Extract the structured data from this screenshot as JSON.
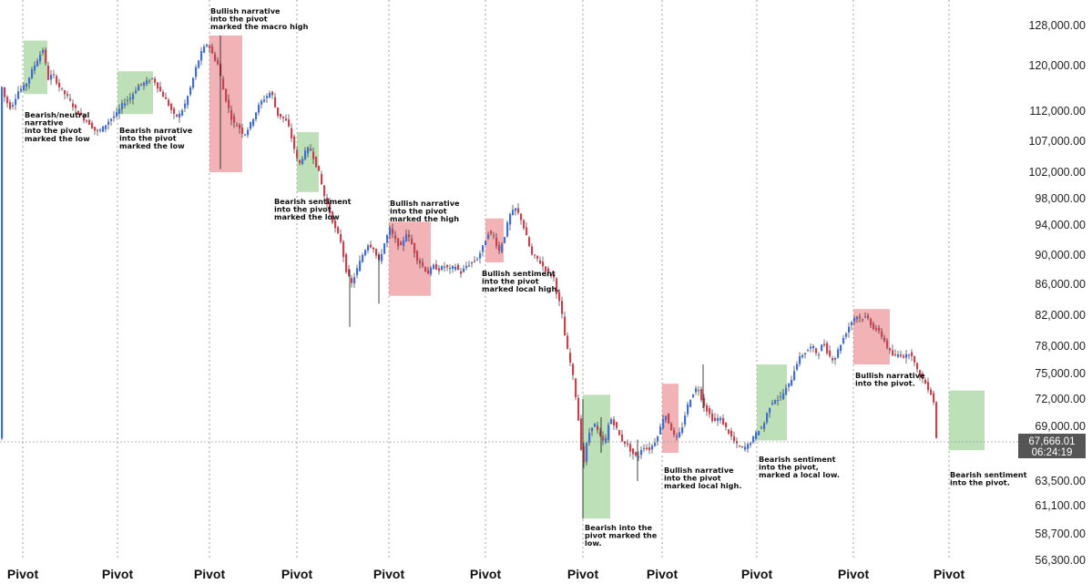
{
  "chart_data": {
    "type": "candlestick",
    "title": "",
    "grid": false,
    "colors": {
      "up": "#3d6fd6",
      "down": "#c9414f",
      "bullish_zone": "#a8d5a0",
      "bearish_zone": "#ec9a9e",
      "pivot_line": "#8a8a8a"
    },
    "y_axis": {
      "ticks": [
        "128,000.00",
        "120,000.00",
        "112,000.00",
        "107,000.00",
        "102,000.00",
        "98,000.00",
        "94,000.00",
        "90,000.00",
        "86,000.00",
        "82,000.00",
        "78,000.00",
        "75,000.00",
        "72,000.00",
        "69,000.00",
        "66,000.00",
        "63,500.00",
        "61,100.00",
        "58,700.00",
        "56,300.00"
      ]
    },
    "current_price": {
      "value": "67,666.01",
      "countdown": "06:24:19"
    },
    "x_labels": [
      "Pivot",
      "Pivot",
      "Pivot",
      "Pivot",
      "Pivot",
      "Pivot",
      "Pivot",
      "Pivot",
      "Pivot",
      "Pivot",
      "Pivot"
    ],
    "zones": [
      {
        "kind": "bearish-sentiment",
        "top": 125000,
        "bottom": 115000
      },
      {
        "kind": "bearish-sentiment",
        "top": 119000,
        "bottom": 111500
      },
      {
        "kind": "bullish-sentiment",
        "top": 126000,
        "bottom": 102000
      },
      {
        "kind": "bearish-sentiment",
        "top": 108500,
        "bottom": 99000
      },
      {
        "kind": "bullish-sentiment",
        "top": 94500,
        "bottom": 84500
      },
      {
        "kind": "bullish-sentiment",
        "top": 95000,
        "bottom": 89000
      },
      {
        "kind": "bearish-sentiment",
        "top": 72500,
        "bottom": 60000
      },
      {
        "kind": "bullish-sentiment",
        "top": 73800,
        "bottom": 66000
      },
      {
        "kind": "bearish-sentiment",
        "top": 76000,
        "bottom": 67400
      },
      {
        "kind": "bullish-sentiment",
        "top": 82800,
        "bottom": 76000
      },
      {
        "kind": "bearish-sentiment",
        "top": 73000,
        "bottom": 66300
      }
    ],
    "annotations": [
      {
        "lines": [
          "Bearish/neutral",
          "narrative",
          "into the pivot",
          "marked the low"
        ]
      },
      {
        "lines": [
          "Bearish narrative",
          "into the pivot",
          "marked the low"
        ]
      },
      {
        "lines": [
          "Bullish narrative",
          "into the pivot",
          "marked the macro high"
        ]
      },
      {
        "lines": [
          "Bearish sentiment",
          "into the pivot",
          "marked the low"
        ]
      },
      {
        "lines": [
          "Bullish narrative",
          "into the pivot",
          "marked the high"
        ]
      },
      {
        "lines": [
          "Bullish sentiment",
          "into the pivot",
          "marked local high."
        ]
      },
      {
        "lines": [
          "Bearish into the",
          "pivot marked the",
          "low."
        ]
      },
      {
        "lines": [
          "Bullish narrative",
          "into the pivot",
          "marked local high."
        ]
      },
      {
        "lines": [
          "Bearish sentiment",
          "into the pivot,",
          "marked a local low."
        ]
      },
      {
        "lines": [
          "Bullish narrative",
          "into the pivot."
        ]
      },
      {
        "lines": [
          "Bearish sentiment",
          "into the pivot."
        ]
      }
    ],
    "price_path": [
      [
        0,
        117500
      ],
      [
        6,
        114000
      ],
      [
        12,
        112500
      ],
      [
        20,
        115500
      ],
      [
        28,
        116500
      ],
      [
        35,
        119000
      ],
      [
        42,
        121500
      ],
      [
        48,
        123500
      ],
      [
        52,
        117500
      ],
      [
        58,
        118500
      ],
      [
        66,
        116000
      ],
      [
        74,
        114500
      ],
      [
        82,
        112500
      ],
      [
        90,
        111000
      ],
      [
        98,
        110000
      ],
      [
        106,
        108500
      ],
      [
        112,
        109000
      ],
      [
        120,
        110500
      ],
      [
        128,
        111500
      ],
      [
        136,
        113500
      ],
      [
        144,
        114500
      ],
      [
        152,
        116500
      ],
      [
        160,
        117000
      ],
      [
        168,
        117800
      ],
      [
        176,
        115500
      ],
      [
        184,
        113500
      ],
      [
        192,
        111000
      ],
      [
        198,
        111500
      ],
      [
        204,
        113500
      ],
      [
        210,
        116500
      ],
      [
        216,
        120000
      ],
      [
        222,
        123000
      ],
      [
        228,
        124500
      ],
      [
        234,
        122000
      ],
      [
        240,
        120000
      ],
      [
        244,
        116500
      ],
      [
        250,
        113000
      ],
      [
        256,
        110000
      ],
      [
        262,
        109500
      ],
      [
        268,
        108000
      ],
      [
        274,
        109500
      ],
      [
        280,
        111500
      ],
      [
        286,
        113500
      ],
      [
        292,
        114500
      ],
      [
        298,
        115500
      ],
      [
        304,
        111500
      ],
      [
        310,
        111000
      ],
      [
        316,
        110000
      ],
      [
        322,
        106500
      ],
      [
        328,
        103000
      ],
      [
        334,
        105000
      ],
      [
        340,
        106000
      ],
      [
        344,
        104500
      ],
      [
        350,
        102000
      ],
      [
        356,
        98500
      ],
      [
        362,
        96000
      ],
      [
        368,
        93500
      ],
      [
        374,
        92000
      ],
      [
        380,
        88000
      ],
      [
        386,
        86000
      ],
      [
        392,
        88000
      ],
      [
        398,
        90000
      ],
      [
        404,
        91500
      ],
      [
        410,
        91000
      ],
      [
        416,
        89000
      ],
      [
        422,
        91500
      ],
      [
        428,
        93500
      ],
      [
        434,
        92000
      ],
      [
        440,
        91000
      ],
      [
        446,
        93000
      ],
      [
        452,
        91500
      ],
      [
        458,
        89500
      ],
      [
        464,
        88500
      ],
      [
        470,
        87500
      ],
      [
        476,
        88500
      ],
      [
        482,
        88000
      ],
      [
        488,
        88500
      ],
      [
        494,
        88000
      ],
      [
        500,
        88500
      ],
      [
        506,
        87500
      ],
      [
        512,
        88500
      ],
      [
        518,
        89000
      ],
      [
        524,
        89500
      ],
      [
        530,
        91000
      ],
      [
        536,
        93000
      ],
      [
        542,
        92500
      ],
      [
        548,
        90500
      ],
      [
        554,
        92500
      ],
      [
        560,
        95500
      ],
      [
        566,
        96500
      ],
      [
        572,
        95000
      ],
      [
        578,
        92500
      ],
      [
        584,
        90000
      ],
      [
        590,
        89500
      ],
      [
        596,
        88500
      ],
      [
        602,
        87500
      ],
      [
        608,
        87000
      ],
      [
        612,
        84500
      ],
      [
        616,
        83000
      ],
      [
        620,
        79500
      ],
      [
        624,
        77000
      ],
      [
        628,
        75500
      ],
      [
        632,
        72500
      ],
      [
        636,
        69000
      ],
      [
        640,
        64500
      ],
      [
        646,
        68000
      ],
      [
        652,
        69500
      ],
      [
        658,
        68000
      ],
      [
        664,
        67000
      ],
      [
        670,
        70000
      ],
      [
        676,
        69000
      ],
      [
        682,
        67500
      ],
      [
        688,
        67000
      ],
      [
        694,
        66000
      ],
      [
        700,
        65500
      ],
      [
        706,
        66800
      ],
      [
        712,
        66300
      ],
      [
        718,
        67000
      ],
      [
        724,
        68500
      ],
      [
        730,
        70500
      ],
      [
        736,
        69000
      ],
      [
        742,
        67500
      ],
      [
        748,
        68500
      ],
      [
        754,
        71000
      ],
      [
        760,
        72500
      ],
      [
        766,
        73500
      ],
      [
        772,
        71500
      ],
      [
        778,
        70500
      ],
      [
        784,
        69500
      ],
      [
        790,
        70000
      ],
      [
        796,
        69000
      ],
      [
        802,
        68000
      ],
      [
        808,
        67000
      ],
      [
        814,
        66500
      ],
      [
        820,
        66700
      ],
      [
        826,
        67500
      ],
      [
        832,
        68500
      ],
      [
        838,
        69000
      ],
      [
        844,
        71000
      ],
      [
        850,
        72000
      ],
      [
        856,
        72000
      ],
      [
        862,
        73000
      ],
      [
        868,
        74000
      ],
      [
        874,
        76000
      ],
      [
        880,
        77000
      ],
      [
        886,
        77500
      ],
      [
        892,
        78000
      ],
      [
        898,
        77000
      ],
      [
        904,
        78500
      ],
      [
        910,
        77000
      ],
      [
        916,
        76500
      ],
      [
        922,
        78000
      ],
      [
        928,
        79500
      ],
      [
        934,
        81000
      ],
      [
        940,
        82000
      ],
      [
        946,
        81500
      ],
      [
        952,
        81800
      ],
      [
        958,
        80500
      ],
      [
        964,
        80000
      ],
      [
        970,
        79000
      ],
      [
        976,
        77500
      ],
      [
        982,
        76800
      ],
      [
        988,
        77200
      ],
      [
        994,
        76800
      ],
      [
        1000,
        77500
      ],
      [
        1006,
        75500
      ],
      [
        1012,
        74500
      ],
      [
        1018,
        73500
      ],
      [
        1022,
        72700
      ],
      [
        1026,
        71500
      ],
      [
        1028,
        67666
      ]
    ]
  }
}
